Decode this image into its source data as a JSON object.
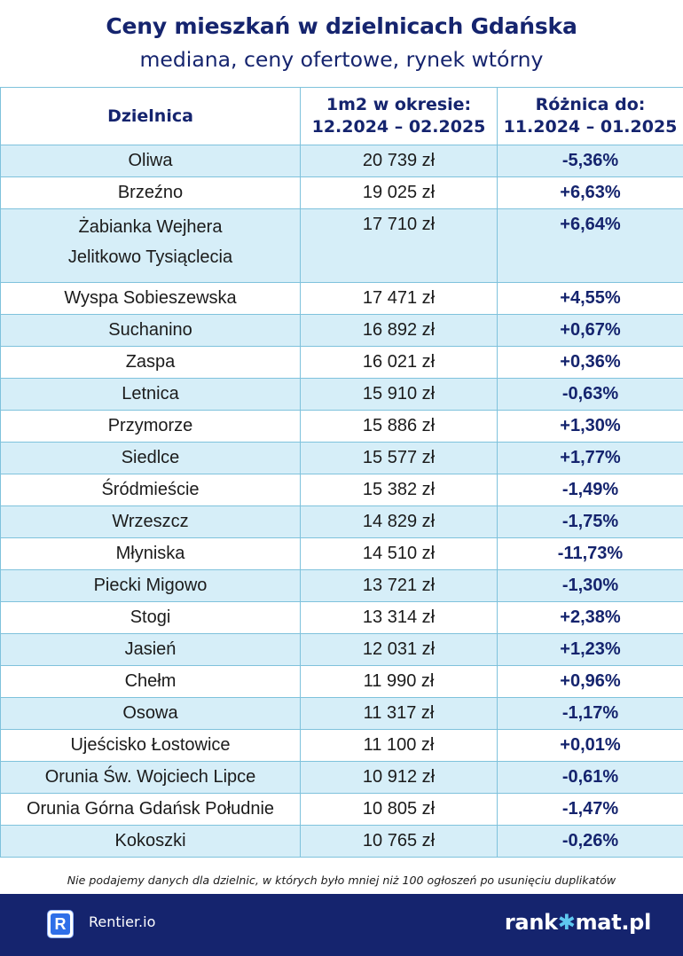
{
  "header": {
    "title": "Ceny mieszkań w dzielnicach Gdańska",
    "subtitle": "mediana, ceny ofertowe, rynek wtórny"
  },
  "table": {
    "columns": {
      "district": "Dzielnica",
      "price_line1": "1m2 w okresie:",
      "price_line2": "12.2024 – 02.2025",
      "change_line1": "Różnica do:",
      "change_line2": "11.2024 – 01.2025"
    },
    "rows": [
      {
        "district": "Oliwa",
        "price": "20 739 zł",
        "change": "-5,36%"
      },
      {
        "district": "Brzeźno",
        "price": "19 025 zł",
        "change": "+6,63%"
      },
      {
        "district": "Żabianka Wejhera",
        "district_line2": "Jelitkowo Tysiąclecia",
        "price": "17 710 zł",
        "change": "+6,64%"
      },
      {
        "district": "Wyspa Sobieszewska",
        "price": "17 471 zł",
        "change": "+4,55%"
      },
      {
        "district": "Suchanino",
        "price": "16 892 zł",
        "change": "+0,67%"
      },
      {
        "district": "Zaspa",
        "price": "16 021 zł",
        "change": "+0,36%"
      },
      {
        "district": "Letnica",
        "price": "15 910 zł",
        "change": "-0,63%"
      },
      {
        "district": "Przymorze",
        "price": "15 886 zł",
        "change": "+1,30%"
      },
      {
        "district": "Siedlce",
        "price": "15 577 zł",
        "change": "+1,77%"
      },
      {
        "district": "Śródmieście",
        "price": "15 382 zł",
        "change": "-1,49%"
      },
      {
        "district": "Wrzeszcz",
        "price": "14 829 zł",
        "change": "-1,75%"
      },
      {
        "district": "Młyniska",
        "price": "14 510 zł",
        "change": "-11,73%"
      },
      {
        "district": "Piecki Migowo",
        "price": "13 721 zł",
        "change": "-1,30%"
      },
      {
        "district": "Stogi",
        "price": "13 314 zł",
        "change": "+2,38%"
      },
      {
        "district": "Jasień",
        "price": "12 031 zł",
        "change": "+1,23%"
      },
      {
        "district": "Chełm",
        "price": "11 990 zł",
        "change": "+0,96%"
      },
      {
        "district": "Osowa",
        "price": "11 317 zł",
        "change": "-1,17%"
      },
      {
        "district": "Ujeścisko Łostowice",
        "price": "11 100 zł",
        "change": "+0,01%"
      },
      {
        "district": "Orunia Św. Wojciech Lipce",
        "price": "10 912 zł",
        "change": "-0,61%"
      },
      {
        "district": "Orunia Górna Gdańsk Południe",
        "price": "10 805 zł",
        "change": "-1,47%"
      },
      {
        "district": "Kokoszki",
        "price": "10 765 zł",
        "change": "-0,26%"
      }
    ]
  },
  "footnote": "Nie podajemy danych dla dzielnic, w których było mniej niż 100 ogłoszeń po usunięciu duplikatów",
  "footer": {
    "rentier_logo_letter": "R",
    "rentier_name": "Rentier.io",
    "rankomat_part1": "rank",
    "rankomat_part2": "✱",
    "rankomat_part3": "mat.pl"
  },
  "colors": {
    "navy": "#15246e",
    "row_stripe": "#d6eef8",
    "border": "#7fc2dc",
    "rentier_blue": "#2f6fe8"
  }
}
